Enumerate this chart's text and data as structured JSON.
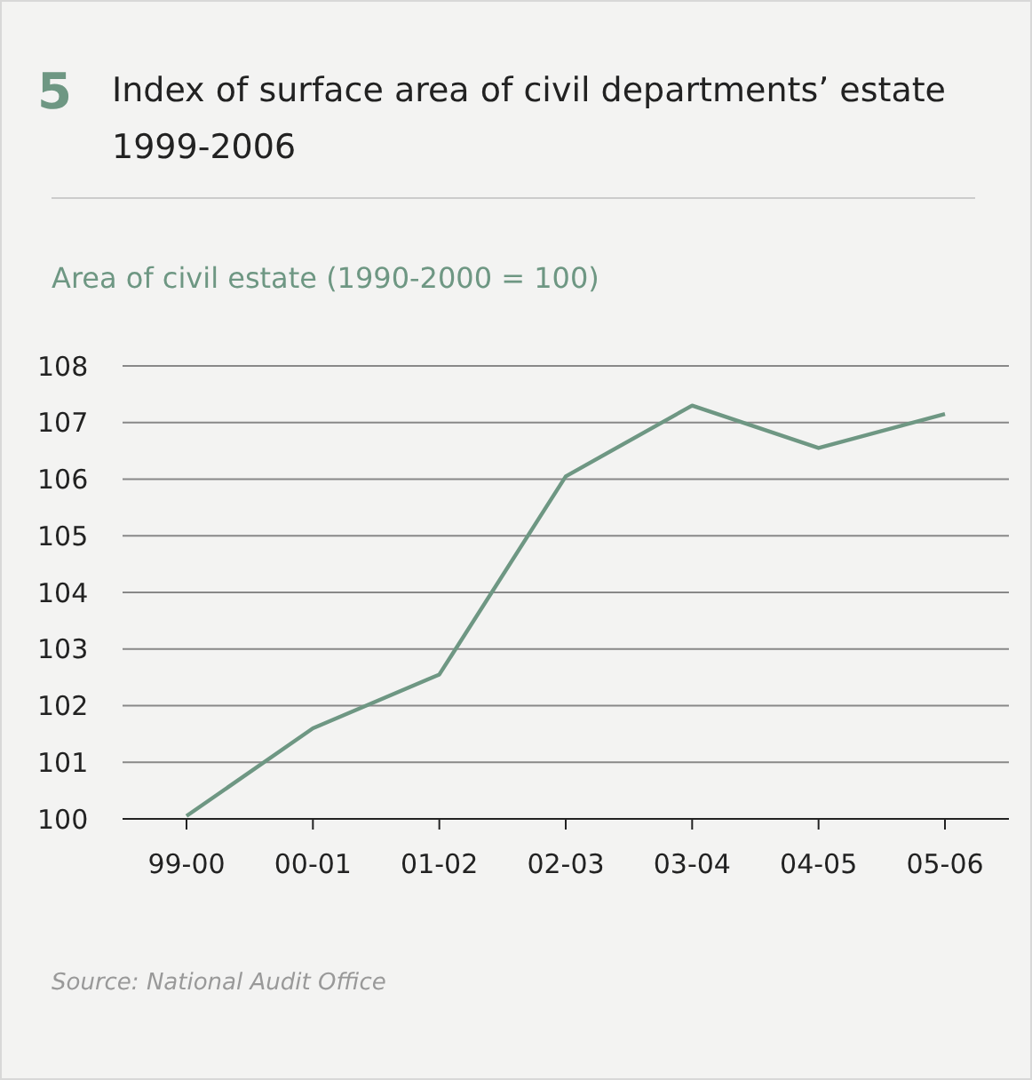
{
  "chart_data": {
    "type": "line",
    "title": "Index of surface area of civil departments’ estate 1999-2006",
    "ylabel": "Area of civil estate (1990-2000 = 100)",
    "annotations": [
      "5",
      "Source: National Audit Office"
    ],
    "categories": [
      "99-00",
      "00-01",
      "01-02",
      "02-03",
      "03-04",
      "04-05",
      "05-06"
    ],
    "series": [
      {
        "color": "#6e9783",
        "values": [
          100.05,
          101.6,
          102.55,
          106.05,
          107.3,
          106.55,
          107.15
        ]
      }
    ],
    "ylim": [
      100,
      108
    ],
    "yticks": [
      100,
      101,
      102,
      103,
      104,
      105,
      106,
      107,
      108
    ],
    "grid": "y",
    "legend": false,
    "marker": "none",
    "line_style": "solid"
  }
}
